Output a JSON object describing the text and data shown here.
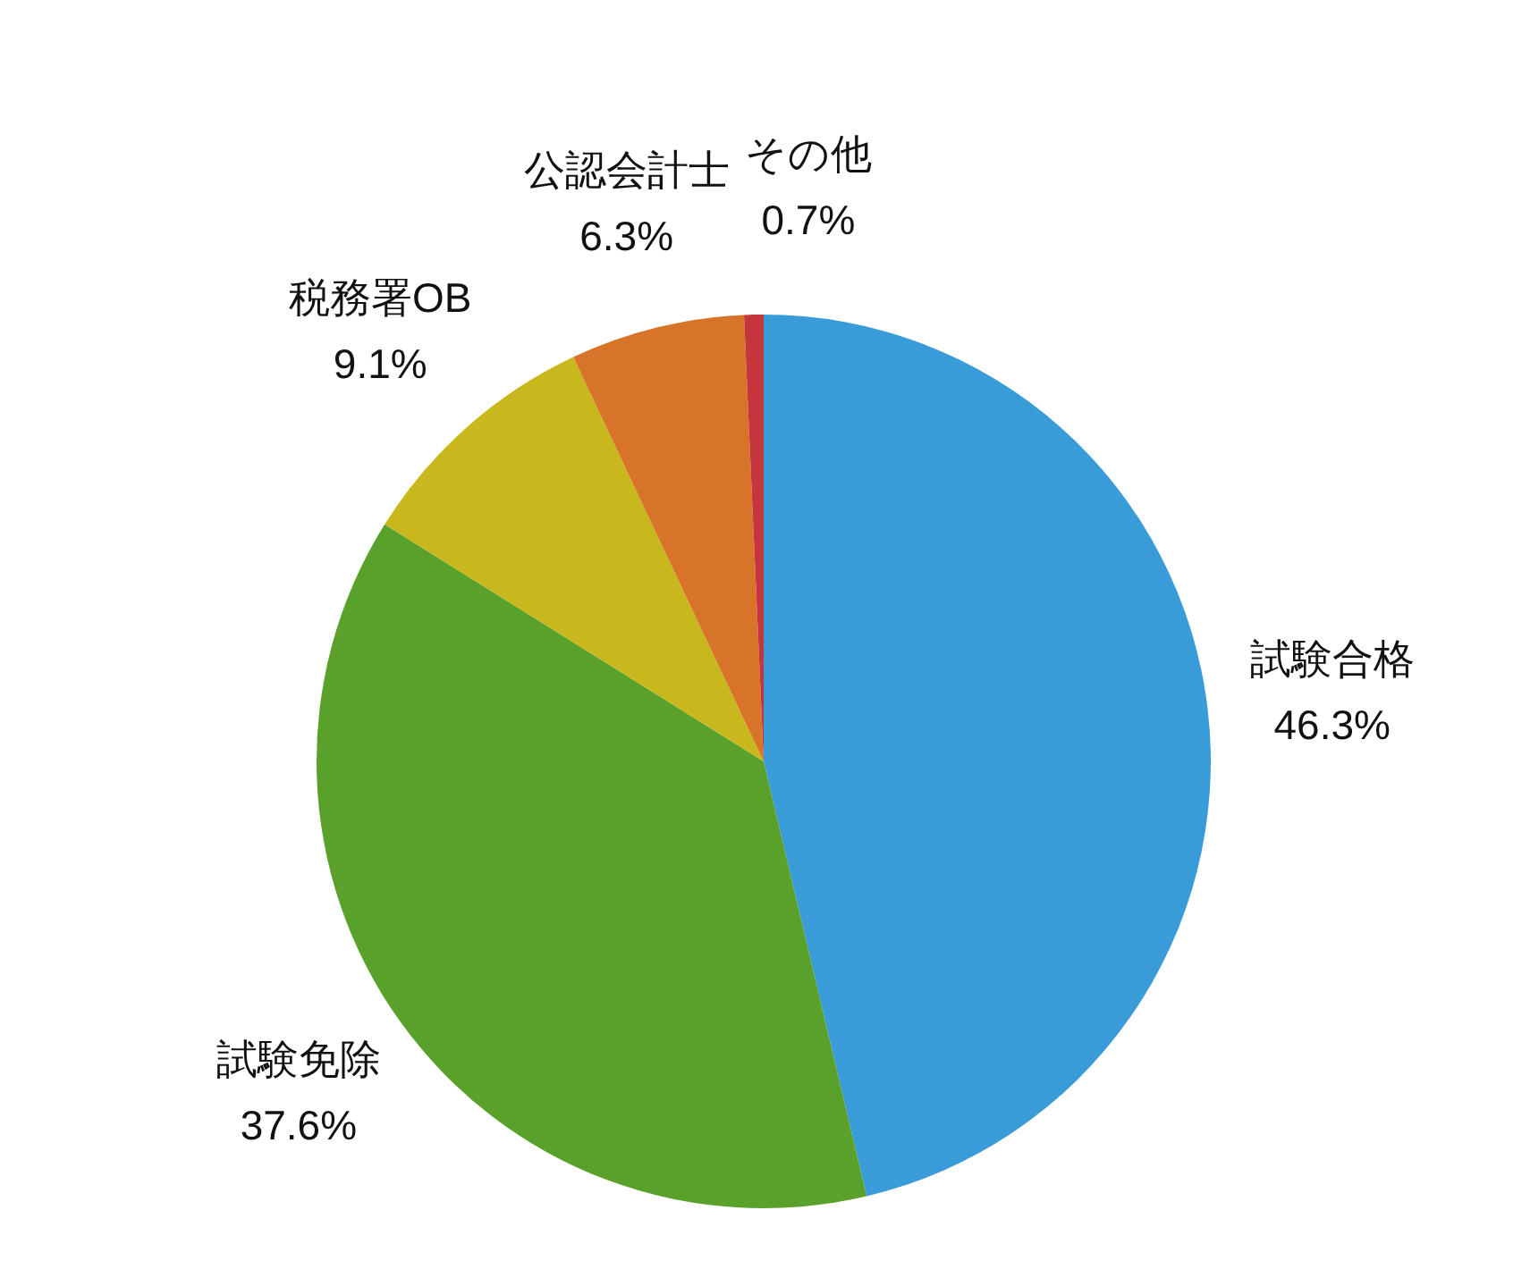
{
  "chart_data": {
    "type": "pie",
    "categories": [
      "試験合格",
      "試験免除",
      "税務署OB",
      "公認会計士",
      "その他"
    ],
    "values": [
      46.3,
      37.6,
      9.1,
      6.3,
      0.7
    ],
    "colors": [
      "#3a9bd9",
      "#5aa12b",
      "#c9b81d",
      "#d8732a",
      "#c4363c"
    ],
    "value_labels": [
      "46.3%",
      "37.6%",
      "9.1%",
      "6.3%",
      "0.7%"
    ]
  }
}
